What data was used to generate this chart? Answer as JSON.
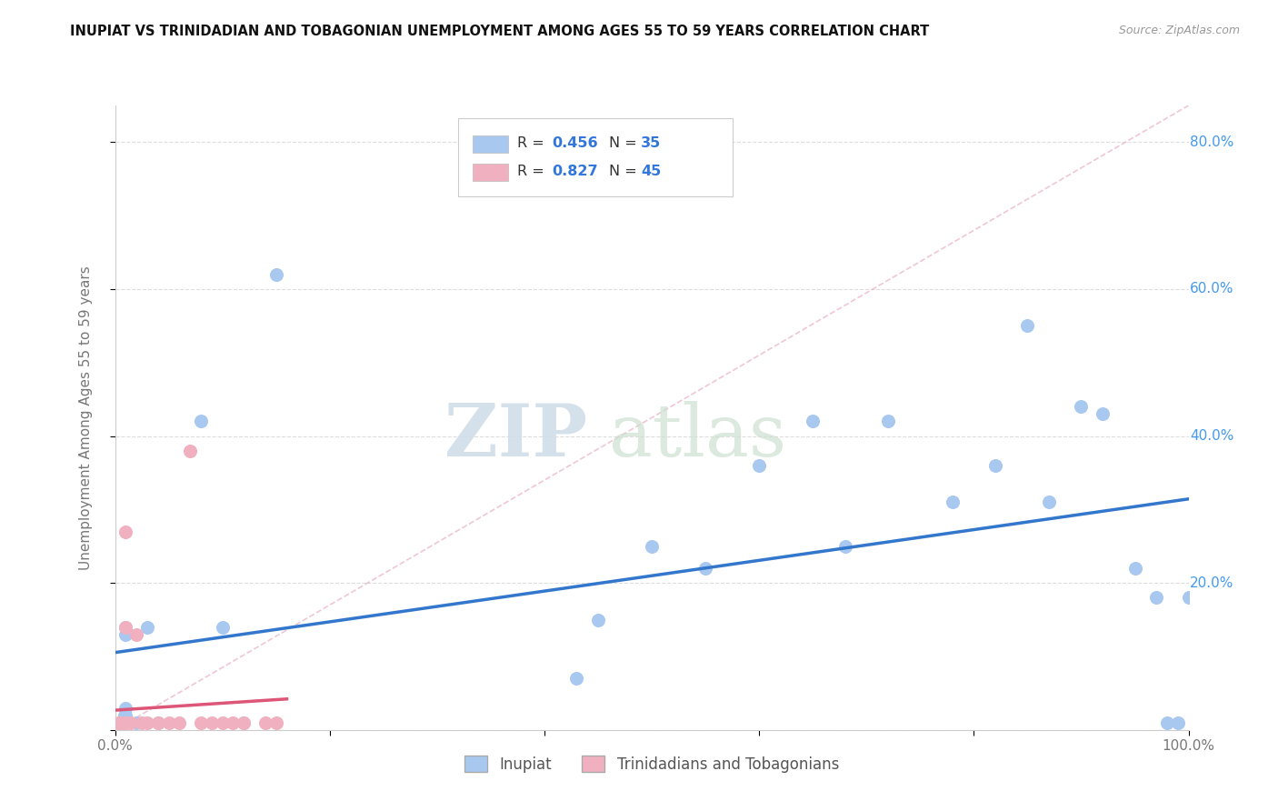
{
  "title": "INUPIAT VS TRINIDADIAN AND TOBAGONIAN UNEMPLOYMENT AMONG AGES 55 TO 59 YEARS CORRELATION CHART",
  "source": "Source: ZipAtlas.com",
  "ylabel": "Unemployment Among Ages 55 to 59 years",
  "xlim": [
    0.0,
    1.0
  ],
  "ylim": [
    0.0,
    0.85
  ],
  "xticks": [
    0.0,
    0.2,
    0.4,
    0.6,
    0.8,
    1.0
  ],
  "xticklabels": [
    "0.0%",
    "",
    "",
    "",
    "",
    "100.0%"
  ],
  "yticks": [
    0.0,
    0.2,
    0.4,
    0.6,
    0.8
  ],
  "yticklabels_right": [
    "",
    "20.0%",
    "40.0%",
    "60.0%",
    "80.0%"
  ],
  "legend_labels": [
    "Inupiat",
    "Trinidadians and Tobagonians"
  ],
  "inupiat_color": "#a8c8f0",
  "trinidadian_color": "#f0b0c0",
  "inupiat_line_color": "#3377cc",
  "trinidadian_line_color": "#dd5577",
  "diagonal_color": "#ddbbcc",
  "R_inupiat": 0.456,
  "N_inupiat": 35,
  "R_trinidadian": 0.827,
  "N_trinidadian": 45,
  "watermark_zip": "ZIP",
  "watermark_atlas": "atlas",
  "inupiat_x": [
    0.005,
    0.007,
    0.008,
    0.009,
    0.01,
    0.01,
    0.01,
    0.01,
    0.01,
    0.02,
    0.03,
    0.04,
    0.08,
    0.1,
    0.12,
    0.15,
    0.43,
    0.45,
    0.5,
    0.55,
    0.6,
    0.65,
    0.68,
    0.72,
    0.78,
    0.82,
    0.85,
    0.87,
    0.9,
    0.92,
    0.95,
    0.97,
    0.98,
    0.99,
    1.0
  ],
  "inupiat_y": [
    0.01,
    0.01,
    0.01,
    0.02,
    0.01,
    0.02,
    0.03,
    0.13,
    0.14,
    0.01,
    0.14,
    0.01,
    0.42,
    0.14,
    0.01,
    0.62,
    0.07,
    0.15,
    0.25,
    0.22,
    0.36,
    0.42,
    0.25,
    0.42,
    0.31,
    0.36,
    0.55,
    0.31,
    0.44,
    0.43,
    0.22,
    0.18,
    0.01,
    0.01,
    0.18
  ],
  "trinidadian_x": [
    0.005,
    0.005,
    0.005,
    0.005,
    0.005,
    0.005,
    0.005,
    0.005,
    0.005,
    0.005,
    0.005,
    0.005,
    0.005,
    0.005,
    0.005,
    0.005,
    0.005,
    0.005,
    0.005,
    0.005,
    0.007,
    0.008,
    0.009,
    0.01,
    0.01,
    0.01,
    0.01,
    0.01,
    0.01,
    0.01,
    0.015,
    0.02,
    0.025,
    0.03,
    0.04,
    0.05,
    0.06,
    0.07,
    0.08,
    0.09,
    0.1,
    0.11,
    0.12,
    0.14,
    0.15
  ],
  "trinidadian_y": [
    0.01,
    0.01,
    0.01,
    0.01,
    0.01,
    0.01,
    0.01,
    0.01,
    0.01,
    0.01,
    0.01,
    0.01,
    0.01,
    0.01,
    0.01,
    0.01,
    0.01,
    0.01,
    0.01,
    0.01,
    0.01,
    0.01,
    0.01,
    0.01,
    0.01,
    0.01,
    0.01,
    0.01,
    0.14,
    0.27,
    0.01,
    0.13,
    0.01,
    0.01,
    0.01,
    0.01,
    0.01,
    0.38,
    0.01,
    0.01,
    0.01,
    0.01,
    0.01,
    0.01,
    0.01
  ]
}
